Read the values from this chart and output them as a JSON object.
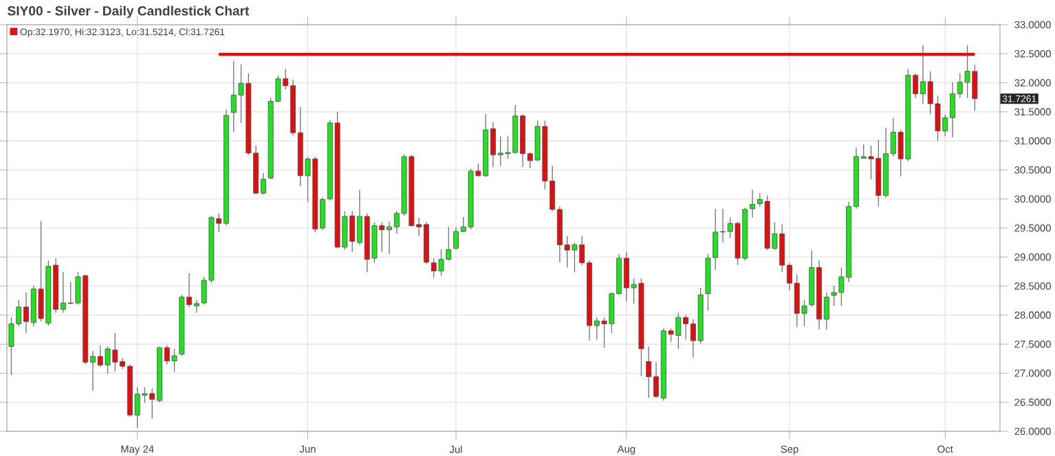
{
  "chart_data": {
    "type": "candlestick",
    "title": "SIY00 - Silver - Daily Candlestick Chart",
    "annotations": [
      "Op:32.1970, Hi:32.3123, Lo:31.5214, Cl:31.7261",
      "31.7261"
    ],
    "categories": [
      null,
      null,
      null,
      null,
      null,
      null,
      null,
      null,
      null,
      null,
      null,
      null,
      null,
      null,
      null,
      null,
      null,
      "May 24",
      null,
      null,
      null,
      null,
      null,
      null,
      null,
      null,
      null,
      null,
      null,
      null,
      null,
      null,
      null,
      null,
      null,
      null,
      null,
      null,
      null,
      null,
      "Jun",
      null,
      null,
      null,
      null,
      null,
      null,
      null,
      null,
      null,
      null,
      null,
      null,
      null,
      null,
      null,
      null,
      null,
      null,
      null,
      "Jul",
      null,
      null,
      null,
      null,
      null,
      null,
      null,
      null,
      null,
      null,
      null,
      null,
      null,
      null,
      null,
      null,
      null,
      null,
      null,
      null,
      null,
      null,
      "Aug",
      null,
      null,
      null,
      null,
      null,
      null,
      null,
      null,
      null,
      null,
      null,
      null,
      null,
      null,
      null,
      null,
      null,
      null,
      null,
      null,
      null,
      "Sep",
      null,
      null,
      null,
      null,
      null,
      null,
      null,
      null,
      null,
      null,
      null,
      null,
      null,
      null,
      null,
      null,
      null,
      null,
      null,
      null,
      "Oct",
      null,
      null,
      null,
      null
    ],
    "ohlc": [
      [
        27.46,
        27.96,
        26.97,
        27.85
      ],
      [
        27.85,
        28.26,
        27.81,
        28.14
      ],
      [
        28.14,
        28.39,
        27.69,
        27.89
      ],
      [
        27.87,
        28.51,
        27.81,
        28.45
      ],
      [
        28.45,
        29.62,
        27.89,
        27.94
      ],
      [
        27.86,
        28.94,
        27.82,
        28.84
      ],
      [
        28.86,
        28.98,
        28.04,
        28.1
      ],
      [
        28.1,
        28.74,
        28.04,
        28.21
      ],
      [
        28.21,
        28.57,
        28.2,
        28.2
      ],
      [
        28.21,
        28.74,
        28.18,
        28.66
      ],
      [
        28.68,
        28.7,
        27.15,
        27.19
      ],
      [
        27.19,
        27.38,
        26.7,
        27.29
      ],
      [
        27.29,
        27.48,
        27.11,
        27.14
      ],
      [
        27.14,
        27.46,
        26.99,
        27.42
      ],
      [
        27.4,
        27.69,
        27.03,
        27.19
      ],
      [
        27.2,
        27.26,
        27.07,
        27.12
      ],
      [
        27.12,
        27.15,
        26.25,
        26.28
      ],
      [
        26.28,
        26.76,
        26.06,
        26.64
      ],
      [
        26.62,
        26.76,
        26.49,
        26.65
      ],
      [
        26.65,
        26.74,
        26.22,
        26.55
      ],
      [
        26.53,
        27.46,
        26.5,
        27.44
      ],
      [
        27.44,
        27.48,
        27.15,
        27.21
      ],
      [
        27.21,
        27.42,
        27.02,
        27.3
      ],
      [
        27.33,
        28.35,
        27.3,
        28.31
      ],
      [
        28.31,
        28.72,
        28.14,
        28.18
      ],
      [
        28.16,
        28.26,
        28.04,
        28.2
      ],
      [
        28.21,
        28.66,
        28.18,
        28.6
      ],
      [
        28.6,
        29.71,
        28.55,
        29.68
      ],
      [
        29.66,
        29.75,
        29.43,
        29.58
      ],
      [
        29.58,
        31.54,
        29.54,
        31.44
      ],
      [
        31.49,
        32.37,
        31.15,
        31.79
      ],
      [
        31.79,
        32.32,
        31.31,
        31.99
      ],
      [
        31.99,
        32.16,
        30.76,
        30.79
      ],
      [
        30.79,
        30.92,
        30.08,
        30.1
      ],
      [
        30.1,
        30.45,
        30.08,
        30.34
      ],
      [
        30.36,
        31.74,
        30.34,
        31.68
      ],
      [
        31.68,
        32.13,
        31.66,
        32.07
      ],
      [
        32.07,
        32.24,
        31.89,
        31.95
      ],
      [
        31.95,
        32.05,
        31.09,
        31.14
      ],
      [
        31.14,
        31.58,
        30.22,
        30.4
      ],
      [
        30.4,
        30.73,
        29.95,
        30.69
      ],
      [
        30.69,
        30.73,
        29.43,
        29.48
      ],
      [
        29.5,
        30.03,
        29.46,
        29.99
      ],
      [
        30.0,
        31.35,
        29.97,
        31.31
      ],
      [
        31.31,
        31.5,
        29.15,
        29.17
      ],
      [
        29.17,
        29.79,
        29.13,
        29.7
      ],
      [
        29.71,
        29.79,
        29.09,
        29.27
      ],
      [
        29.25,
        30.16,
        29.21,
        29.7
      ],
      [
        29.7,
        29.75,
        28.74,
        28.96
      ],
      [
        28.98,
        29.6,
        28.9,
        29.54
      ],
      [
        29.54,
        29.6,
        29.09,
        29.47
      ],
      [
        29.47,
        29.61,
        29.05,
        29.52
      ],
      [
        29.52,
        29.79,
        29.4,
        29.75
      ],
      [
        29.75,
        30.76,
        29.71,
        30.73
      ],
      [
        30.73,
        30.76,
        29.52,
        29.54
      ],
      [
        29.56,
        29.68,
        29.36,
        29.52
      ],
      [
        29.56,
        29.6,
        28.88,
        28.91
      ],
      [
        28.9,
        28.98,
        28.65,
        28.76
      ],
      [
        28.76,
        29.13,
        28.68,
        28.96
      ],
      [
        28.96,
        29.52,
        28.94,
        29.13
      ],
      [
        29.15,
        29.52,
        29.13,
        29.44
      ],
      [
        29.44,
        29.69,
        29.43,
        29.52
      ],
      [
        29.52,
        30.52,
        29.48,
        30.48
      ],
      [
        30.48,
        30.61,
        30.38,
        30.4
      ],
      [
        30.4,
        31.46,
        30.38,
        31.19
      ],
      [
        31.21,
        31.32,
        30.55,
        30.76
      ],
      [
        30.76,
        31.08,
        30.57,
        30.79
      ],
      [
        30.78,
        31.08,
        30.69,
        30.8
      ],
      [
        30.8,
        31.62,
        30.78,
        31.43
      ],
      [
        31.43,
        31.46,
        30.55,
        30.78
      ],
      [
        30.78,
        30.8,
        30.53,
        30.66
      ],
      [
        30.67,
        31.35,
        30.65,
        31.25
      ],
      [
        31.25,
        31.35,
        30.16,
        30.31
      ],
      [
        30.31,
        30.57,
        29.79,
        29.82
      ],
      [
        29.82,
        29.87,
        28.91,
        29.21
      ],
      [
        29.21,
        29.36,
        28.82,
        29.12
      ],
      [
        29.12,
        29.25,
        28.74,
        29.21
      ],
      [
        29.21,
        29.36,
        28.86,
        28.9
      ],
      [
        28.9,
        28.94,
        27.56,
        27.82
      ],
      [
        27.82,
        27.96,
        27.58,
        27.9
      ],
      [
        27.9,
        27.96,
        27.44,
        27.85
      ],
      [
        27.85,
        28.39,
        27.69,
        28.37
      ],
      [
        28.37,
        29.05,
        28.35,
        28.98
      ],
      [
        28.98,
        29.09,
        28.24,
        28.47
      ],
      [
        28.47,
        28.63,
        28.2,
        28.53
      ],
      [
        28.55,
        28.63,
        26.95,
        27.42
      ],
      [
        27.2,
        27.46,
        26.58,
        26.94
      ],
      [
        26.94,
        27.19,
        26.58,
        26.6
      ],
      [
        26.57,
        27.77,
        26.53,
        27.73
      ],
      [
        27.73,
        27.77,
        27.54,
        27.67
      ],
      [
        27.65,
        28.04,
        27.42,
        27.96
      ],
      [
        27.96,
        28.0,
        27.58,
        27.85
      ],
      [
        27.85,
        27.93,
        27.27,
        27.56
      ],
      [
        27.56,
        28.47,
        27.51,
        28.35
      ],
      [
        28.37,
        29.05,
        28.08,
        28.98
      ],
      [
        28.99,
        29.83,
        28.78,
        29.43
      ],
      [
        29.43,
        29.83,
        29.25,
        29.44
      ],
      [
        29.44,
        29.68,
        29.33,
        29.58
      ],
      [
        29.58,
        29.61,
        28.86,
        28.98
      ],
      [
        28.98,
        29.85,
        28.94,
        29.82
      ],
      [
        29.83,
        30.16,
        29.68,
        29.91
      ],
      [
        29.92,
        30.1,
        29.87,
        29.99
      ],
      [
        29.96,
        30.06,
        29.12,
        29.15
      ],
      [
        29.15,
        29.6,
        29.12,
        29.4
      ],
      [
        29.4,
        29.56,
        28.74,
        28.86
      ],
      [
        28.86,
        28.9,
        28.43,
        28.55
      ],
      [
        28.55,
        28.7,
        27.79,
        28.03
      ],
      [
        28.03,
        28.26,
        27.81,
        28.16
      ],
      [
        28.18,
        29.11,
        28.14,
        28.82
      ],
      [
        28.82,
        28.94,
        27.75,
        27.93
      ],
      [
        27.93,
        28.39,
        27.75,
        28.31
      ],
      [
        28.34,
        28.51,
        28.16,
        28.39
      ],
      [
        28.39,
        28.82,
        28.16,
        28.66
      ],
      [
        28.65,
        29.95,
        28.57,
        29.87
      ],
      [
        29.87,
        30.88,
        29.83,
        30.73
      ],
      [
        30.7,
        30.94,
        30.69,
        30.73
      ],
      [
        30.73,
        30.92,
        30.34,
        30.69
      ],
      [
        30.7,
        31.02,
        29.87,
        30.06
      ],
      [
        30.06,
        31.23,
        30.03,
        30.78
      ],
      [
        30.78,
        31.39,
        30.73,
        31.15
      ],
      [
        31.15,
        31.19,
        30.39,
        30.69
      ],
      [
        30.69,
        32.24,
        30.65,
        32.13
      ],
      [
        32.13,
        32.16,
        31.74,
        31.81
      ],
      [
        31.81,
        32.65,
        31.64,
        32.02
      ],
      [
        32.02,
        32.2,
        31.46,
        31.64
      ],
      [
        31.64,
        31.78,
        31.0,
        31.17
      ],
      [
        31.17,
        31.45,
        31.08,
        31.4
      ],
      [
        31.4,
        32.01,
        31.06,
        31.81
      ],
      [
        31.81,
        32.16,
        31.74,
        32.01
      ],
      [
        32.01,
        32.65,
        31.74,
        32.2
      ],
      [
        32.197,
        32.3123,
        31.5214,
        31.7261
      ]
    ],
    "series": [
      {
        "type": "line",
        "values": [
          null,
          null,
          null,
          null,
          null,
          null,
          null,
          null,
          null,
          null,
          null,
          null,
          null,
          null,
          null,
          null,
          null,
          null,
          null,
          null,
          null,
          null,
          null,
          null,
          null,
          null,
          null,
          null,
          32.49,
          32.49,
          32.49,
          32.49,
          32.49,
          32.49,
          32.49,
          32.49,
          32.49,
          32.49,
          32.49,
          32.49,
          32.49,
          32.49,
          32.49,
          32.49,
          32.49,
          32.49,
          32.49,
          32.49,
          32.49,
          32.49,
          32.49,
          32.49,
          32.49,
          32.49,
          32.49,
          32.49,
          32.49,
          32.49,
          32.49,
          32.49,
          32.49,
          32.49,
          32.49,
          32.49,
          32.49,
          32.49,
          32.49,
          32.49,
          32.49,
          32.49,
          32.49,
          32.49,
          32.49,
          32.49,
          32.49,
          32.49,
          32.49,
          32.49,
          32.49,
          32.49,
          32.49,
          32.49,
          32.49,
          32.49,
          32.49,
          32.49,
          32.49,
          32.49,
          32.49,
          32.49,
          32.49,
          32.49,
          32.49,
          32.49,
          32.49,
          32.49,
          32.49,
          32.49,
          32.49,
          32.49,
          32.49,
          32.49,
          32.49,
          32.49,
          32.49,
          32.49,
          32.49,
          32.49,
          32.49,
          32.49,
          32.49,
          32.49,
          32.49,
          32.49,
          32.49,
          32.49,
          32.49,
          32.49,
          32.49,
          32.49,
          32.49,
          32.49,
          32.49,
          32.49,
          32.49,
          32.49,
          32.49,
          32.49,
          32.49,
          32.49,
          32.49
        ],
        "color": "#ff0000"
      }
    ],
    "ylim": [
      26,
      33
    ],
    "yticks": [
      {
        "value": 26,
        "label": "26.0000"
      },
      {
        "value": 26.5,
        "label": "26.5000"
      },
      {
        "value": 27,
        "label": "27.0000"
      },
      {
        "value": 27.5,
        "label": "27.5000"
      },
      {
        "value": 28,
        "label": "28.0000"
      },
      {
        "value": 28.5,
        "label": "28.5000"
      },
      {
        "value": 29,
        "label": "29.0000"
      },
      {
        "value": 29.5,
        "label": "29.5000"
      },
      {
        "value": 30,
        "label": "30.0000"
      },
      {
        "value": 30.5,
        "label": "30.5000"
      },
      {
        "value": 31,
        "label": "31.0000"
      },
      {
        "value": 31.5,
        "label": "31.5000"
      },
      {
        "value": 32,
        "label": "32.0000"
      },
      {
        "value": 32.5,
        "label": "32.5000"
      },
      {
        "value": 33,
        "label": "33.0000"
      }
    ],
    "grid": true
  }
}
